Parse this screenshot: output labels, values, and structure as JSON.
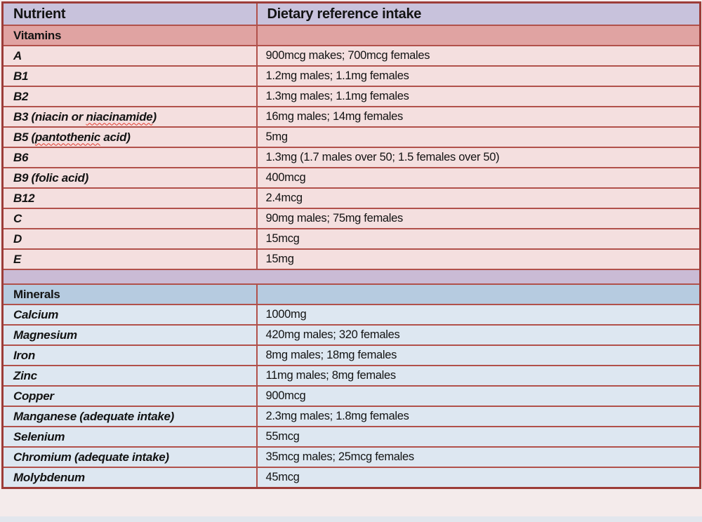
{
  "page": {
    "columns": [
      {
        "label": "Nutrient"
      },
      {
        "label": "Dietary reference intake"
      }
    ],
    "sections": [
      {
        "id": "vitamins",
        "label": "Vitamins",
        "theme": "vitamins",
        "spacer_before": false,
        "rows": [
          {
            "name": "A",
            "value": "900mcg makes; 700mcg females"
          },
          {
            "name": "B1",
            "value": "1.2mg males; 1.1mg females"
          },
          {
            "name": "B2",
            "value": "1.3mg males; 1.1mg females"
          },
          {
            "name": "B3 (niacin or niacinamide)",
            "value": "16mg males; 14mg females",
            "misspelled": [
              "niacinamide"
            ]
          },
          {
            "name": "B5 (pantothenic acid)",
            "value": "5mg",
            "misspelled": [
              "pantothenic"
            ]
          },
          {
            "name": "B6",
            "value": "1.3mg (1.7 males over 50; 1.5 females over 50)"
          },
          {
            "name": "B9 (folic acid)",
            "value": "400mcg"
          },
          {
            "name": "B12",
            "value": "2.4mcg"
          },
          {
            "name": "C",
            "value": "90mg males; 75mg females"
          },
          {
            "name": "D",
            "value": "15mcg"
          },
          {
            "name": "E",
            "value": "15mg"
          }
        ]
      },
      {
        "id": "minerals",
        "label": "Minerals",
        "theme": "minerals",
        "spacer_before": true,
        "rows": [
          {
            "name": "Calcium",
            "value": "1000mg"
          },
          {
            "name": "Magnesium",
            "value": "420mg males; 320 females"
          },
          {
            "name": "Iron",
            "value": "8mg males; 18mg females"
          },
          {
            "name": "Zinc",
            "value": "11mg males; 8mg females"
          },
          {
            "name": "Copper",
            "value": "900mcg"
          },
          {
            "name": "Manganese (adequate intake)",
            "value": "2.3mg males; 1.8mg females"
          },
          {
            "name": "Selenium",
            "value": "55mcg"
          },
          {
            "name": "Chromium (adequate intake)",
            "value": "35mcg males; 25mcg females"
          },
          {
            "name": "Molybdenum",
            "value": "45mcg"
          }
        ]
      }
    ],
    "colors": {
      "border": "#b1514b",
      "outer_border": "#9c3c38",
      "header_bg": "#c8c2dc",
      "vitamins_header_bg": "#e0a3a2",
      "vitamins_row_bg": "#f4dfdf",
      "spacer_bg": "#cabbd5",
      "minerals_header_bg": "#b6cbe0",
      "minerals_row_bg": "#dde7f1"
    }
  }
}
